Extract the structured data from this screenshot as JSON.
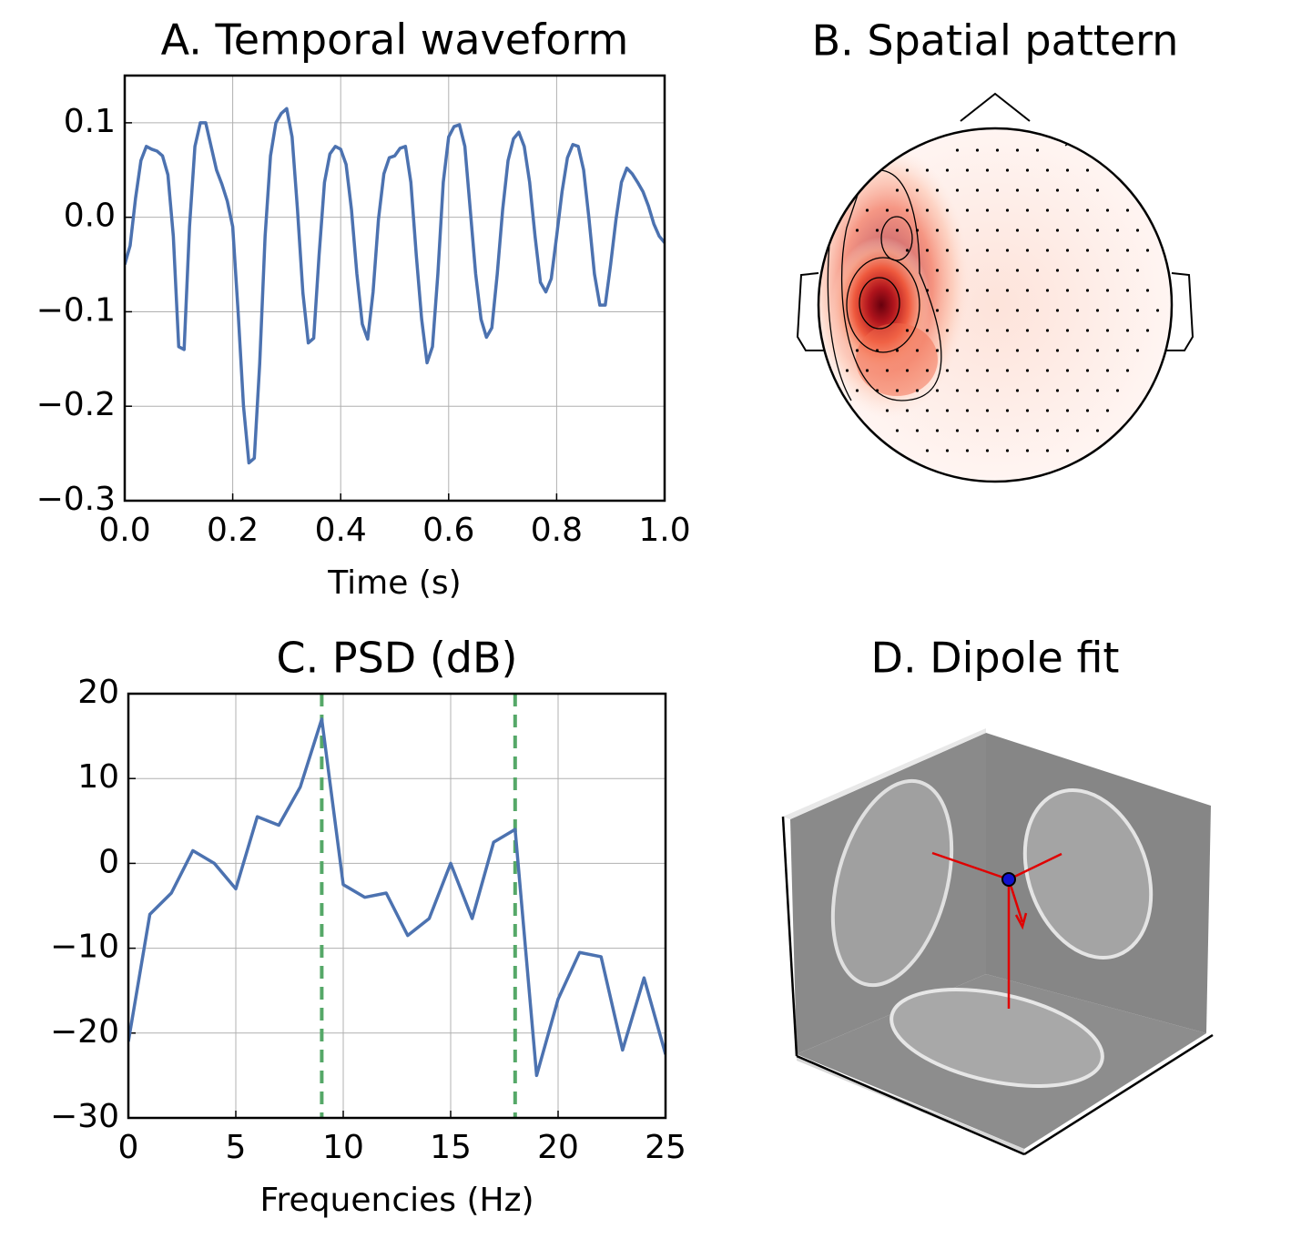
{
  "chart_data": [
    {
      "type": "line",
      "title": "A. Temporal waveform",
      "xlabel": "Time (s)",
      "color": "#4c72b0",
      "grid": true,
      "x": [
        0,
        0.01,
        0.02,
        0.03,
        0.04,
        0.05,
        0.06,
        0.07,
        0.08,
        0.09,
        0.1,
        0.11,
        0.12,
        0.13,
        0.14,
        0.15,
        0.16,
        0.17,
        0.18,
        0.19,
        0.2,
        0.21,
        0.22,
        0.23,
        0.24,
        0.25,
        0.26,
        0.27,
        0.28,
        0.29,
        0.3,
        0.31,
        0.32,
        0.33,
        0.34,
        0.35,
        0.36,
        0.37,
        0.38,
        0.39,
        0.4,
        0.41,
        0.42,
        0.43,
        0.44,
        0.45,
        0.46,
        0.47,
        0.48,
        0.49,
        0.5,
        0.51,
        0.52,
        0.53,
        0.54,
        0.55,
        0.56,
        0.57,
        0.58,
        0.59,
        0.6,
        0.61,
        0.62,
        0.63,
        0.64,
        0.65,
        0.66,
        0.67,
        0.68,
        0.69,
        0.7,
        0.71,
        0.72,
        0.73,
        0.74,
        0.75,
        0.76,
        0.77,
        0.78,
        0.79,
        0.8,
        0.81,
        0.82,
        0.83,
        0.84,
        0.85,
        0.86,
        0.87,
        0.88,
        0.89,
        0.9,
        0.91,
        0.92,
        0.93,
        0.94,
        0.95,
        0.96,
        0.97,
        0.98,
        0.99,
        1.0
      ],
      "values": [
        -0.05,
        -0.03,
        0.02,
        0.06,
        0.075,
        0.072,
        0.07,
        0.065,
        0.045,
        -0.02,
        -0.137,
        -0.14,
        -0.01,
        0.075,
        0.1,
        0.1,
        0.075,
        0.05,
        0.035,
        0.017,
        -0.01,
        -0.1,
        -0.2,
        -0.26,
        -0.255,
        -0.155,
        -0.02,
        0.065,
        0.1,
        0.11,
        0.115,
        0.085,
        0.008,
        -0.08,
        -0.133,
        -0.128,
        -0.04,
        0.037,
        0.067,
        0.075,
        0.072,
        0.056,
        0.008,
        -0.06,
        -0.113,
        -0.129,
        -0.079,
        -0.002,
        0.046,
        0.063,
        0.065,
        0.073,
        0.075,
        0.037,
        -0.04,
        -0.108,
        -0.154,
        -0.137,
        -0.06,
        0.037,
        0.085,
        0.096,
        0.098,
        0.075,
        0.008,
        -0.06,
        -0.108,
        -0.127,
        -0.117,
        -0.06,
        0.008,
        0.06,
        0.083,
        0.09,
        0.075,
        0.037,
        -0.02,
        -0.069,
        -0.079,
        -0.065,
        -0.02,
        0.027,
        0.063,
        0.077,
        0.075,
        0.05,
        -0.002,
        -0.06,
        -0.093,
        -0.093,
        -0.05,
        -0.002,
        0.037,
        0.052,
        0.046,
        0.037,
        0.027,
        0.012,
        -0.007,
        -0.02,
        -0.027
      ],
      "xlim": [
        0,
        1
      ],
      "ylim": [
        -0.3,
        0.15
      ],
      "xticks": [
        {
          "value": 0,
          "label": "0.0"
        },
        0.2,
        0.4,
        0.6,
        0.8,
        {
          "value": 1,
          "label": "1.0"
        }
      ],
      "yticks": [
        {
          "value": -0.3,
          "label": "−0.3"
        },
        {
          "value": -0.2,
          "label": "−0.2"
        },
        {
          "value": -0.1,
          "label": "−0.1"
        },
        {
          "value": 0,
          "label": "0.0"
        },
        0.1
      ]
    },
    {
      "type": "image",
      "title": "B. Spatial pattern"
    },
    {
      "type": "line",
      "title": "C. PSD (dB)",
      "xlabel": "Frequencies (Hz)",
      "color": "#4c72b0",
      "grid": true,
      "x": [
        0,
        1,
        2,
        3,
        4,
        5,
        6,
        7,
        8,
        9,
        10,
        11,
        12,
        13,
        14,
        15,
        16,
        17,
        18,
        19,
        20,
        21,
        22,
        23,
        24,
        25
      ],
      "values": [
        -21,
        -6,
        -3.5,
        1.5,
        0,
        -3,
        5.5,
        4.5,
        9,
        17,
        -2.5,
        -4,
        -3.5,
        -8.5,
        -6.5,
        0,
        -6.5,
        2.5,
        4,
        -25,
        -16,
        -10.5,
        -11,
        -22,
        -13.5,
        -22.5
      ],
      "vlines": [
        9,
        18
      ],
      "vline_color": "#55a868",
      "xlim": [
        0,
        25
      ],
      "ylim": [
        -30,
        20
      ],
      "xticks": [
        0,
        5,
        10,
        15,
        20,
        25
      ],
      "yticks": [
        {
          "value": -30,
          "label": "−30"
        },
        {
          "value": -20,
          "label": "−20"
        },
        {
          "value": -10,
          "label": "−10"
        },
        0,
        10,
        20
      ]
    },
    {
      "type": "image",
      "title": "D. Dipole fit"
    }
  ]
}
